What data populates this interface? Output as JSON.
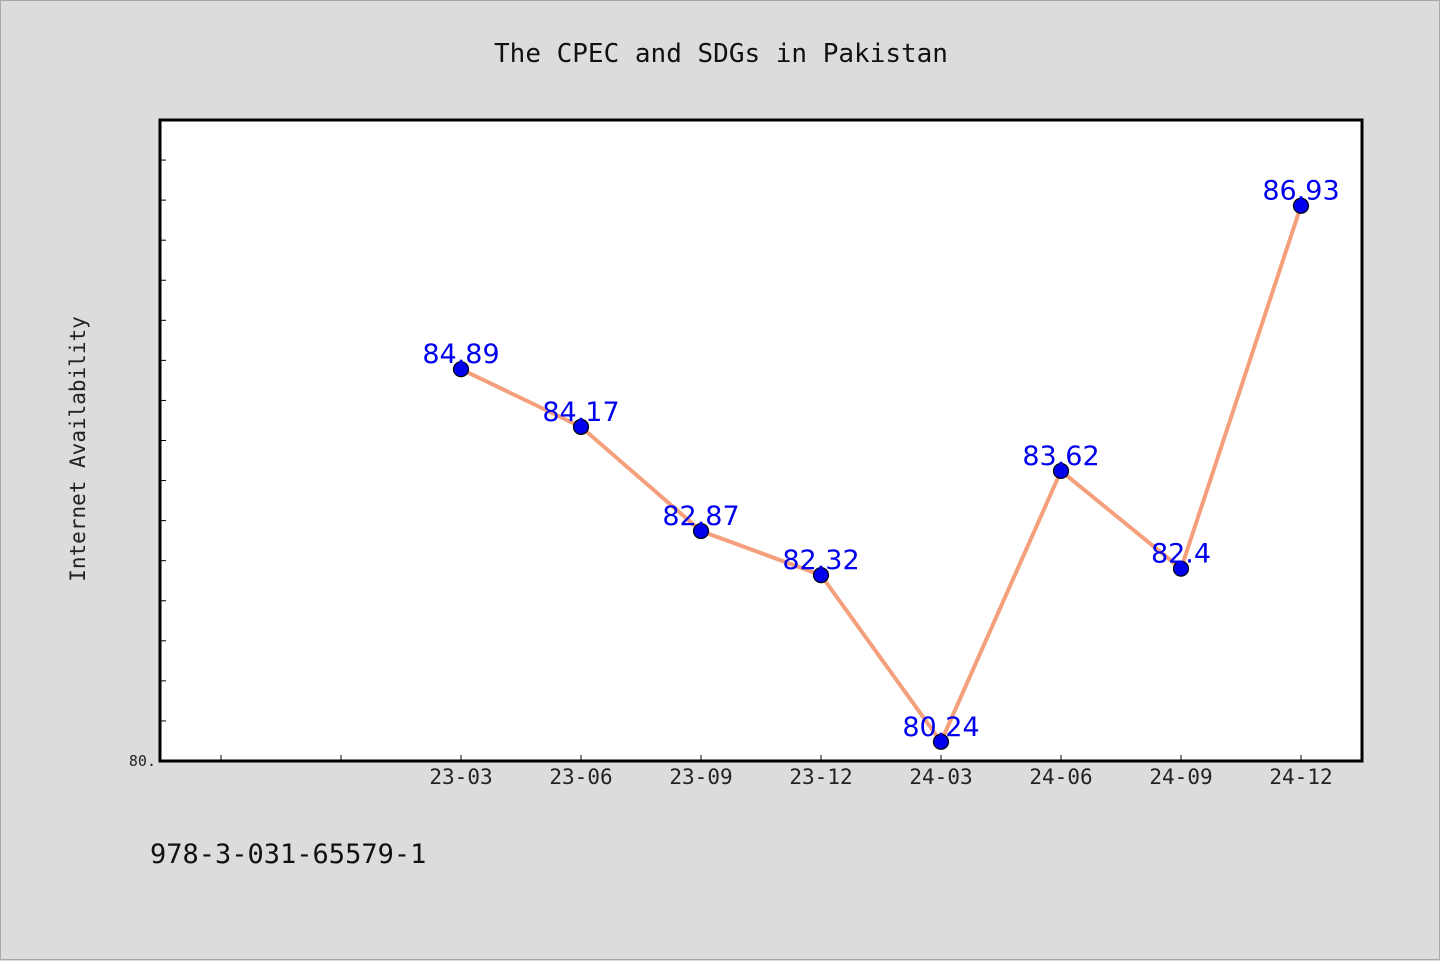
{
  "chart_data": {
    "type": "line",
    "title": "The CPEC and SDGs in Pakistan",
    "xlabel": "",
    "ylabel": "Internet Availability",
    "categories": [
      "23-03",
      "23-06",
      "23-09",
      "23-12",
      "24-03",
      "24-06",
      "24-09",
      "24-12"
    ],
    "series": [
      {
        "values": [
          84.89,
          84.17,
          82.87,
          82.32,
          80.24,
          83.62,
          82.4,
          86.93
        ],
        "data_labels": [
          "84.89",
          "84.17",
          "82.87",
          "82.32",
          "80.24",
          "83.62",
          "82.4",
          "86.93"
        ]
      }
    ],
    "ylim": [
      80.0,
      88.0
    ],
    "y_tick_labels": [
      "80."
    ],
    "grid": false,
    "legend": "none",
    "colors": {
      "line": "#f4a07c",
      "marker": "#0000ee",
      "label": "#0000ee",
      "plot_background": "#ffffff",
      "page_background": "#dcdcdc"
    }
  },
  "footer": {
    "isbn": "978-3-031-65579-1"
  }
}
